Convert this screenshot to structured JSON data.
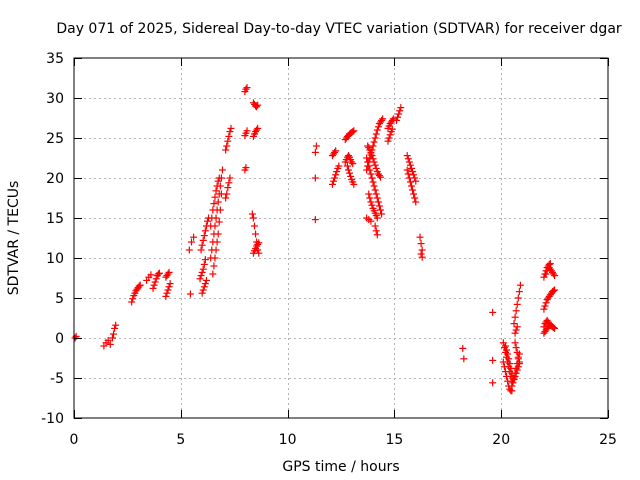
{
  "chart_data": {
    "type": "scatter",
    "title": "Day 071 of 2025, Sidereal Day-to-day VTEC variation (SDTVAR) for receiver dgar",
    "xlabel": "GPS time / hours",
    "ylabel": "SDTVAR / TECUs",
    "xlim": [
      0,
      25
    ],
    "ylim": [
      -10,
      35
    ],
    "xticks": [
      0,
      5,
      10,
      15,
      20,
      25
    ],
    "yticks": [
      -10,
      -5,
      0,
      5,
      10,
      15,
      20,
      25,
      30,
      35
    ],
    "grid": true,
    "marker": "+",
    "color": "#ff0000",
    "segments": [
      {
        "x": [
          0.05,
          0.1
        ],
        "y": [
          0.0,
          0.2
        ]
      },
      {
        "x": [
          1.4,
          1.5,
          1.6,
          1.7
        ],
        "y": [
          -1.0,
          -0.6,
          -0.3,
          -0.8
        ]
      },
      {
        "x": [
          1.8,
          1.85,
          1.9,
          1.95
        ],
        "y": [
          0.0,
          0.5,
          1.2,
          1.6
        ]
      },
      {
        "x": [
          2.7,
          2.75,
          2.8,
          2.85,
          2.9,
          2.95,
          3.0,
          3.05,
          3.1
        ],
        "y": [
          4.5,
          4.9,
          5.3,
          5.6,
          5.9,
          6.1,
          6.3,
          6.5,
          6.6
        ]
      },
      {
        "x": [
          3.4,
          3.5,
          3.6
        ],
        "y": [
          7.2,
          7.6,
          7.9
        ]
      },
      {
        "x": [
          3.7,
          3.75,
          3.8,
          3.85,
          3.9,
          3.95,
          4.0
        ],
        "y": [
          6.2,
          6.6,
          7.0,
          7.4,
          7.8,
          8.0,
          8.1
        ]
      },
      {
        "x": [
          4.3,
          4.35,
          4.4,
          4.45
        ],
        "y": [
          7.6,
          7.8,
          8.0,
          8.2
        ]
      },
      {
        "x": [
          4.3,
          4.35,
          4.4,
          4.45,
          4.5
        ],
        "y": [
          5.2,
          5.6,
          6.0,
          6.4,
          6.8
        ]
      },
      {
        "x": [
          5.4,
          5.5,
          5.6
        ],
        "y": [
          11.0,
          12.0,
          12.6
        ]
      },
      {
        "x": [
          5.45
        ],
        "y": [
          5.5
        ]
      },
      {
        "x": [
          5.9,
          5.95,
          6.0,
          6.05,
          6.1,
          6.15
        ],
        "y": [
          7.4,
          7.8,
          8.2,
          8.6,
          9.2,
          9.8
        ]
      },
      {
        "x": [
          6.0,
          6.05,
          6.1,
          6.15,
          6.2
        ],
        "y": [
          5.6,
          6.0,
          6.4,
          6.8,
          7.2
        ]
      },
      {
        "x": [
          5.95,
          6.0,
          6.05,
          6.1,
          6.15,
          6.2,
          6.25,
          6.3
        ],
        "y": [
          11.0,
          11.6,
          12.2,
          12.8,
          13.4,
          14.0,
          14.6,
          15.0
        ]
      },
      {
        "x": [
          6.4,
          6.45,
          6.5,
          6.55,
          6.6,
          6.65,
          6.7,
          6.75,
          6.8,
          6.85,
          6.9,
          6.95
        ],
        "y": [
          10.0,
          11.0,
          12.0,
          13.0,
          14.0,
          15.0,
          16.0,
          17.0,
          18.0,
          19.0,
          20.0,
          21.0
        ]
      },
      {
        "x": [
          6.4,
          6.45,
          6.5,
          6.55,
          6.6,
          6.65,
          6.7,
          6.75,
          6.8
        ],
        "y": [
          14.0,
          15.0,
          16.0,
          16.8,
          17.6,
          18.4,
          19.0,
          19.6,
          20.0
        ]
      },
      {
        "x": [
          6.5,
          6.55,
          6.6,
          6.65,
          6.7,
          6.75,
          6.8,
          6.85,
          6.9
        ],
        "y": [
          8.0,
          9.0,
          10.0,
          11.0,
          12.0,
          13.0,
          14.5,
          16.0,
          18.0
        ]
      },
      {
        "x": [
          7.1,
          7.15,
          7.2,
          7.25,
          7.3
        ],
        "y": [
          17.5,
          18.0,
          18.8,
          19.4,
          20.0
        ]
      },
      {
        "x": [
          7.1,
          7.15,
          7.2,
          7.25,
          7.3,
          7.35
        ],
        "y": [
          23.5,
          24.0,
          24.6,
          25.2,
          25.8,
          26.2
        ]
      },
      {
        "x": [
          8.0,
          8.05
        ],
        "y": [
          21.0,
          21.3
        ]
      },
      {
        "x": [
          8.0,
          8.05,
          8.1
        ],
        "y": [
          25.3,
          25.6,
          25.9
        ]
      },
      {
        "x": [
          8.0,
          8.05,
          8.1
        ],
        "y": [
          30.8,
          31.1,
          31.3
        ]
      },
      {
        "x": [
          8.4,
          8.45,
          8.5,
          8.55,
          8.6
        ],
        "y": [
          25.2,
          25.5,
          25.8,
          26.0,
          26.2
        ]
      },
      {
        "x": [
          8.4,
          8.45,
          8.5,
          8.55,
          8.6
        ],
        "y": [
          29.4,
          29.2,
          29.0,
          28.9,
          29.1
        ]
      },
      {
        "x": [
          8.35,
          8.4,
          8.45,
          8.5,
          8.55,
          8.6,
          8.65
        ],
        "y": [
          15.5,
          15.0,
          14.0,
          13.0,
          12.0,
          11.0,
          10.6
        ]
      },
      {
        "x": [
          8.4,
          8.45,
          8.5,
          8.55,
          8.6,
          8.65
        ],
        "y": [
          10.6,
          10.9,
          11.2,
          11.5,
          11.7,
          11.9
        ]
      },
      {
        "x": [
          11.3,
          11.35
        ],
        "y": [
          23.2,
          24.0
        ]
      },
      {
        "x": [
          11.3
        ],
        "y": [
          20.0
        ]
      },
      {
        "x": [
          11.3
        ],
        "y": [
          14.8
        ]
      },
      {
        "x": [
          12.1,
          12.15,
          12.2,
          12.25,
          12.3,
          12.35,
          12.4
        ],
        "y": [
          19.2,
          19.6,
          20.0,
          20.4,
          20.8,
          21.2,
          21.5
        ]
      },
      {
        "x": [
          12.1,
          12.15,
          12.2,
          12.25
        ],
        "y": [
          22.8,
          23.0,
          23.2,
          23.4
        ]
      },
      {
        "x": [
          12.7,
          12.75,
          12.8,
          12.85,
          12.9,
          12.95,
          13.0,
          13.05,
          13.1
        ],
        "y": [
          24.8,
          25.0,
          25.2,
          25.3,
          25.5,
          25.6,
          25.7,
          25.8,
          25.9
        ]
      },
      {
        "x": [
          12.7,
          12.75,
          12.8,
          12.85,
          12.9,
          12.95,
          13.0,
          13.05
        ],
        "y": [
          22.0,
          22.3,
          22.6,
          22.8,
          22.6,
          22.3,
          22.0,
          21.8
        ]
      },
      {
        "x": [
          12.8,
          12.85,
          12.9,
          12.95,
          13.0,
          13.05,
          13.1
        ],
        "y": [
          21.5,
          21.0,
          20.6,
          20.2,
          19.8,
          19.5,
          19.2
        ]
      },
      {
        "x": [
          13.7,
          13.75,
          13.8,
          13.85,
          13.9,
          13.95,
          14.0,
          14.05,
          14.1,
          14.15,
          14.2,
          14.25,
          14.3,
          14.35,
          14.4,
          14.45
        ],
        "y": [
          21.0,
          21.5,
          22.0,
          22.5,
          23.0,
          23.5,
          24.0,
          24.5,
          25.0,
          25.5,
          26.0,
          26.4,
          26.8,
          27.0,
          27.2,
          27.4
        ]
      },
      {
        "x": [
          13.7,
          13.75,
          13.8,
          13.85,
          13.9,
          13.95,
          14.0,
          14.05,
          14.1,
          14.15,
          14.2,
          14.25,
          14.3,
          14.35,
          14.4
        ],
        "y": [
          22.5,
          22.0,
          21.5,
          21.0,
          20.5,
          20.0,
          19.5,
          19.0,
          18.5,
          18.0,
          17.5,
          17.0,
          16.5,
          16.0,
          15.5
        ]
      },
      {
        "x": [
          13.75,
          13.8,
          13.85,
          13.9,
          13.95,
          14.0,
          14.05,
          14.1,
          14.15,
          14.2,
          14.25,
          14.3,
          14.35
        ],
        "y": [
          24.0,
          23.8,
          23.5,
          23.2,
          22.8,
          22.4,
          22.0,
          21.6,
          21.2,
          20.8,
          20.5,
          20.3,
          20.1
        ]
      },
      {
        "x": [
          13.8,
          13.85,
          13.9,
          13.95,
          14.0,
          14.05,
          14.1,
          14.15,
          14.2
        ],
        "y": [
          18.0,
          17.5,
          17.0,
          16.6,
          16.2,
          15.9,
          15.6,
          15.3,
          15.0
        ]
      },
      {
        "x": [
          13.7,
          13.8,
          13.9
        ],
        "y": [
          15.0,
          14.8,
          14.6
        ]
      },
      {
        "x": [
          14.1,
          14.15,
          14.2
        ],
        "y": [
          14.0,
          13.4,
          12.9
        ]
      },
      {
        "x": [
          14.7,
          14.75,
          14.8,
          14.85,
          14.9
        ],
        "y": [
          24.6,
          25.0,
          25.4,
          25.8,
          26.1
        ]
      },
      {
        "x": [
          14.7,
          14.75,
          14.8,
          14.85,
          14.9,
          14.95
        ],
        "y": [
          26.2,
          26.5,
          26.8,
          27.0,
          27.2,
          27.4
        ]
      },
      {
        "x": [
          15.1,
          15.15,
          15.2,
          15.25,
          15.3
        ],
        "y": [
          27.2,
          27.6,
          28.0,
          28.4,
          28.8
        ]
      },
      {
        "x": [
          15.6,
          15.65,
          15.7,
          15.75,
          15.8,
          15.85,
          15.9,
          15.95,
          16.0
        ],
        "y": [
          22.8,
          22.4,
          22.0,
          21.6,
          21.2,
          20.8,
          20.4,
          20.0,
          19.6
        ]
      },
      {
        "x": [
          15.6,
          15.65,
          15.7,
          15.75,
          15.8,
          15.85,
          15.9,
          15.95,
          16.0
        ],
        "y": [
          21.0,
          20.5,
          20.0,
          19.5,
          19.0,
          18.5,
          18.0,
          17.5,
          17.0
        ]
      },
      {
        "x": [
          16.2,
          16.25,
          16.3
        ],
        "y": [
          12.6,
          11.8,
          11.0
        ]
      },
      {
        "x": [
          16.25,
          16.3
        ],
        "y": [
          10.5,
          10.1
        ]
      },
      {
        "x": [
          18.2,
          18.25
        ],
        "y": [
          -1.3,
          -2.6
        ]
      },
      {
        "x": [
          19.6
        ],
        "y": [
          3.2
        ]
      },
      {
        "x": [
          19.6
        ],
        "y": [
          -2.8
        ]
      },
      {
        "x": [
          19.6
        ],
        "y": [
          -5.6
        ]
      },
      {
        "x": [
          20.1,
          20.15,
          20.2,
          20.25,
          20.3,
          20.35,
          20.4,
          20.45,
          20.5
        ],
        "y": [
          -0.6,
          -1.2,
          -1.8,
          -2.4,
          -3.0,
          -3.6,
          -4.2,
          -4.8,
          -5.4
        ]
      },
      {
        "x": [
          20.1,
          20.15,
          20.2,
          20.25,
          20.3,
          20.35,
          20.4,
          20.45,
          20.5
        ],
        "y": [
          -3.0,
          -3.6,
          -4.2,
          -4.8,
          -5.4,
          -6.0,
          -6.4,
          -6.6,
          -6.6
        ]
      },
      {
        "x": [
          20.2,
          20.25,
          20.3,
          20.35,
          20.4,
          20.45,
          20.5,
          20.55
        ],
        "y": [
          -1.0,
          -1.5,
          -2.0,
          -2.6,
          -3.2,
          -3.8,
          -4.4,
          -5.0
        ]
      },
      {
        "x": [
          20.5,
          20.55,
          20.6,
          20.65,
          20.7,
          20.75,
          20.8,
          20.85
        ],
        "y": [
          -6.0,
          -5.6,
          -5.2,
          -4.8,
          -4.4,
          -4.0,
          -3.6,
          -3.2
        ]
      },
      {
        "x": [
          20.6,
          20.65,
          20.7,
          20.75,
          20.8,
          20.85
        ],
        "y": [
          -5.0,
          -4.4,
          -3.8,
          -3.2,
          -2.6,
          -2.0
        ]
      },
      {
        "x": [
          20.65,
          20.7,
          20.75,
          20.8,
          20.85
        ],
        "y": [
          -0.6,
          -1.2,
          -1.8,
          -2.4,
          -3.0
        ]
      },
      {
        "x": [
          20.6,
          20.65,
          20.7,
          20.75,
          20.8,
          20.85,
          20.9
        ],
        "y": [
          1.8,
          2.6,
          3.4,
          4.2,
          5.0,
          5.8,
          6.6
        ]
      },
      {
        "x": [
          20.65,
          20.7,
          20.75
        ],
        "y": [
          0.6,
          1.0,
          1.4
        ]
      },
      {
        "x": [
          22.0,
          22.05,
          22.1,
          22.15,
          22.2,
          22.25,
          22.3,
          22.35,
          22.4,
          22.45,
          22.5
        ],
        "y": [
          0.6,
          0.8,
          1.0,
          1.2,
          1.4,
          1.6,
          1.6,
          1.5,
          1.4,
          1.3,
          1.2
        ]
      },
      {
        "x": [
          22.0,
          22.05,
          22.1,
          22.15,
          22.2,
          22.25,
          22.3
        ],
        "y": [
          1.4,
          1.8,
          2.0,
          2.2,
          2.0,
          1.8,
          1.6
        ]
      },
      {
        "x": [
          22.0,
          22.05,
          22.1,
          22.15,
          22.2,
          22.25,
          22.3,
          22.35,
          22.4,
          22.45,
          22.5
        ],
        "y": [
          3.6,
          4.0,
          4.4,
          4.8,
          5.0,
          5.2,
          5.4,
          5.6,
          5.8,
          5.9,
          6.0
        ]
      },
      {
        "x": [
          22.0,
          22.05,
          22.1,
          22.15,
          22.2,
          22.25,
          22.3,
          22.35,
          22.4,
          22.45,
          22.5
        ],
        "y": [
          7.6,
          8.0,
          8.4,
          8.8,
          9.0,
          8.8,
          8.6,
          8.4,
          8.2,
          8.0,
          7.8
        ]
      },
      {
        "x": [
          22.1,
          22.15,
          22.2,
          22.25,
          22.3
        ],
        "y": [
          8.0,
          8.4,
          8.8,
          9.2,
          9.3
        ]
      }
    ]
  }
}
